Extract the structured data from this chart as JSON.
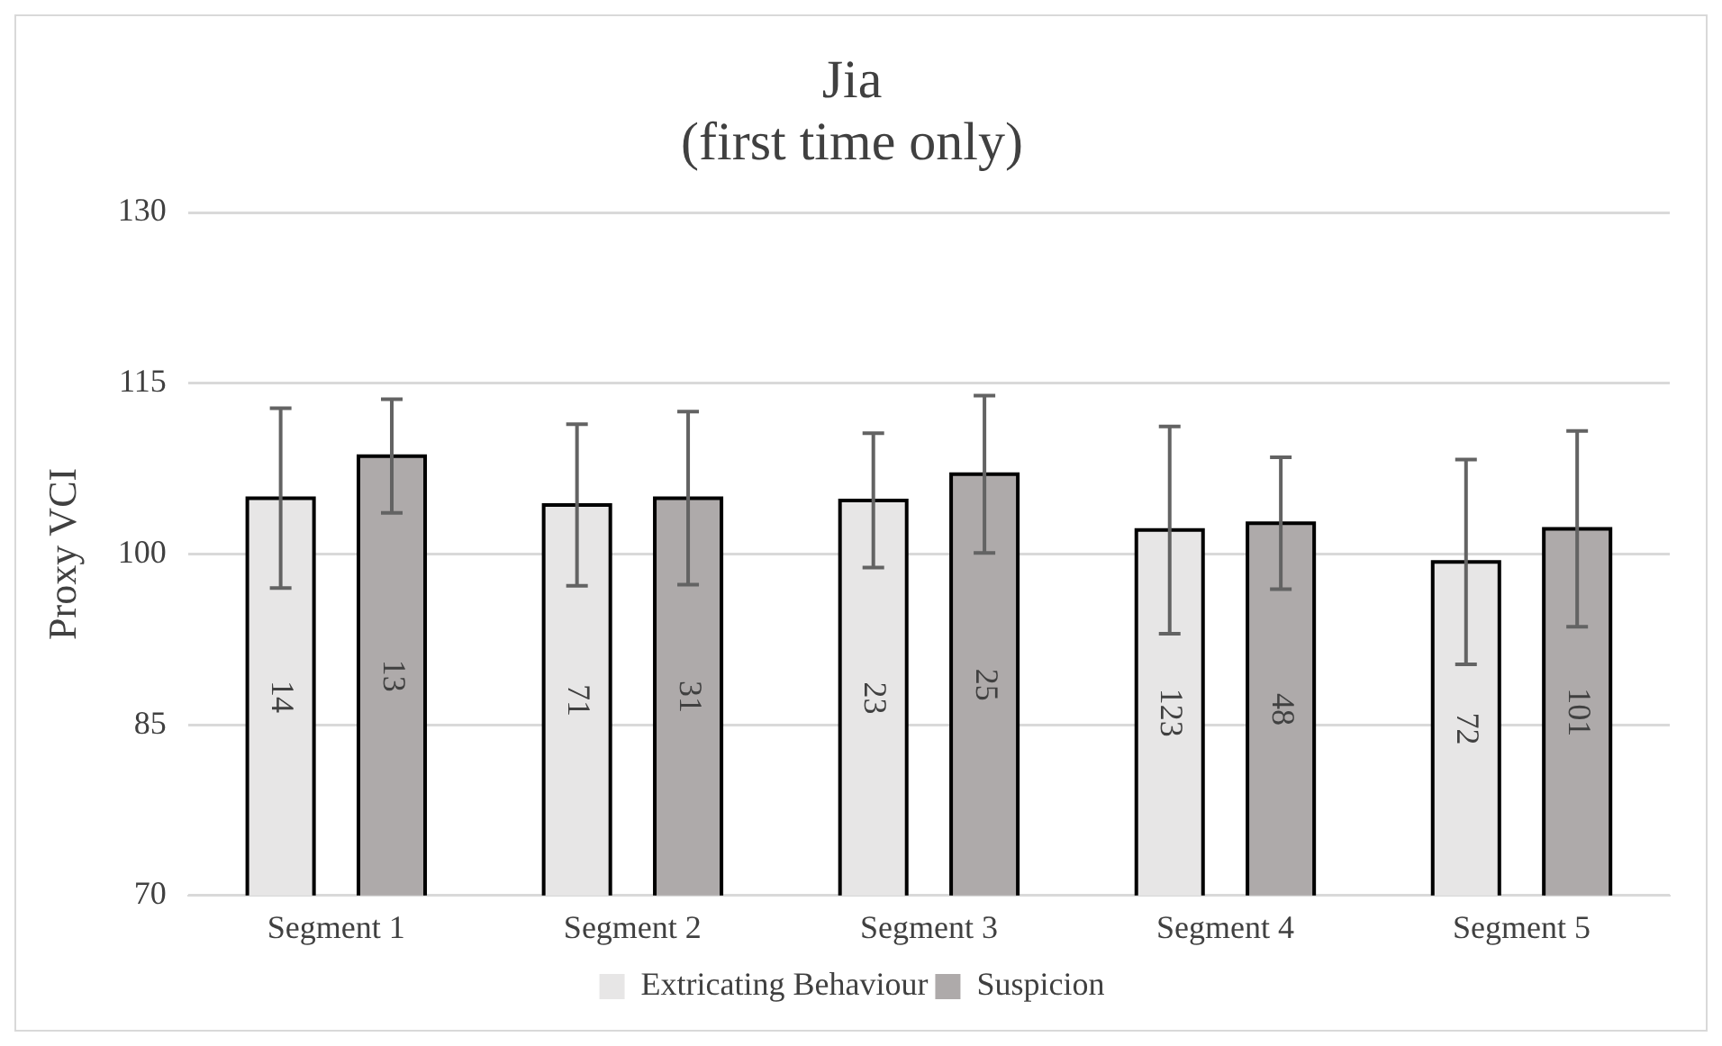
{
  "chart_data": {
    "type": "bar",
    "title": "Jia\n(first time only)",
    "ylabel": "Proxy VCI",
    "categories": [
      "Segment 1",
      "Segment 2",
      "Segment 3",
      "Segment 4",
      "Segment 5"
    ],
    "series": [
      {
        "name": "Extricating Behaviour",
        "color": "#e7e6e6",
        "values": [
          104.9,
          104.3,
          104.7,
          102.1,
          99.3
        ],
        "errors": [
          7.9,
          7.1,
          5.9,
          9.1,
          9.0
        ]
      },
      {
        "name": "Suspicion",
        "color": "#aeaaaa",
        "values": [
          108.6,
          104.9,
          107.0,
          102.7,
          102.2
        ],
        "errors": [
          5.0,
          7.6,
          6.9,
          5.8,
          8.6
        ]
      }
    ],
    "annotations": [
      "14",
      "13",
      "71",
      "31",
      "23",
      "25",
      "123",
      "48",
      "72",
      "101"
    ],
    "ylim": [
      70,
      130
    ],
    "yticks": [
      70,
      85,
      100,
      115,
      130
    ],
    "grid": "y",
    "legend": "bottom"
  }
}
